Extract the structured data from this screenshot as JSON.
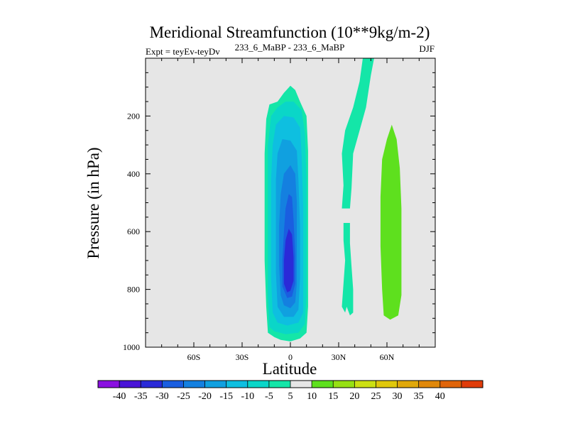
{
  "chart_data": {
    "type": "heatmap",
    "title": "Meridional Streamfunction (10**9kg/m-2)",
    "subtitle_left": "Expt = teyEv-teyDv",
    "subtitle_center": "233_6_MaBP - 233_6_MaBP",
    "subtitle_right": "DJF",
    "xlabel": "Latitude",
    "ylabel": "Pressure (in hPa)",
    "xlim": [
      -90,
      90
    ],
    "ylim": [
      0,
      1000
    ],
    "y_reversed": true,
    "x_ticks": [
      {
        "value": -60,
        "label": "60S"
      },
      {
        "value": -30,
        "label": "30S"
      },
      {
        "value": 0,
        "label": "0"
      },
      {
        "value": 30,
        "label": "30N"
      },
      {
        "value": 60,
        "label": "60N"
      }
    ],
    "y_ticks": [
      {
        "value": 200,
        "label": "200"
      },
      {
        "value": 400,
        "label": "400"
      },
      {
        "value": 600,
        "label": "600"
      },
      {
        "value": 800,
        "label": "800"
      },
      {
        "value": 1000,
        "label": "1000"
      }
    ],
    "background_color": "#e6e6e6",
    "colorbar": {
      "labels": [
        "-40",
        "-35",
        "-30",
        "-25",
        "-20",
        "-15",
        "-10",
        "-5",
        "5",
        "10",
        "15",
        "20",
        "25",
        "30",
        "35",
        "40"
      ],
      "colors": [
        "#8a10e0",
        "#4a14d8",
        "#2a2ad8",
        "#1a5ee0",
        "#1480e0",
        "#10a0e0",
        "#0ebfe0",
        "#0ad6c8",
        "#14e6a8",
        "#e6e6e6",
        "#5ee01e",
        "#96e014",
        "#cce014",
        "#e0c80c",
        "#e0a80a",
        "#e0880a",
        "#e0640a",
        "#e03c0a"
      ]
    },
    "regions": [
      {
        "name": "sh-cell-level-minus5",
        "color": "#14e6a8",
        "points": [
          [
            -14,
            950
          ],
          [
            -15,
            860
          ],
          [
            -16,
            700
          ],
          [
            -16,
            500
          ],
          [
            -16,
            330
          ],
          [
            -15,
            210
          ],
          [
            -13,
            160
          ],
          [
            -8,
            150
          ],
          [
            -4,
            120
          ],
          [
            0,
            95
          ],
          [
            3,
            110
          ],
          [
            6,
            150
          ],
          [
            10,
            200
          ],
          [
            11,
            320
          ],
          [
            11,
            500
          ],
          [
            11,
            700
          ],
          [
            11,
            860
          ],
          [
            10,
            950
          ],
          [
            6,
            970
          ],
          [
            0,
            980
          ],
          [
            -6,
            975
          ],
          [
            -10,
            965
          ]
        ]
      },
      {
        "name": "sh-cell-level-minus10",
        "color": "#0ad6c8",
        "points": [
          [
            -13,
            930
          ],
          [
            -14,
            820
          ],
          [
            -14,
            650
          ],
          [
            -14,
            450
          ],
          [
            -14,
            300
          ],
          [
            -12,
            200
          ],
          [
            -8,
            170
          ],
          [
            -3,
            150
          ],
          [
            2,
            150
          ],
          [
            7,
            180
          ],
          [
            9,
            260
          ],
          [
            10,
            420
          ],
          [
            10,
            620
          ],
          [
            10,
            820
          ],
          [
            9,
            920
          ],
          [
            5,
            950
          ],
          [
            -3,
            955
          ],
          [
            -10,
            945
          ]
        ]
      },
      {
        "name": "sh-cell-level-minus15",
        "color": "#0ebfe0",
        "points": [
          [
            -11,
            880
          ],
          [
            -12,
            760
          ],
          [
            -12,
            580
          ],
          [
            -12,
            420
          ],
          [
            -11,
            300
          ],
          [
            -9,
            230
          ],
          [
            -4,
            200
          ],
          [
            2,
            205
          ],
          [
            6,
            240
          ],
          [
            7,
            340
          ],
          [
            8,
            520
          ],
          [
            8,
            720
          ],
          [
            8,
            880
          ],
          [
            5,
            915
          ],
          [
            -2,
            925
          ],
          [
            -8,
            915
          ]
        ]
      },
      {
        "name": "sh-cell-level-minus20",
        "color": "#10a0e0",
        "points": [
          [
            -8,
            860
          ],
          [
            -9,
            740
          ],
          [
            -9,
            580
          ],
          [
            -9,
            420
          ],
          [
            -8,
            330
          ],
          [
            -5,
            280
          ],
          [
            0,
            285
          ],
          [
            4,
            320
          ],
          [
            5,
            420
          ],
          [
            6,
            580
          ],
          [
            6,
            760
          ],
          [
            5,
            870
          ],
          [
            2,
            895
          ],
          [
            -4,
            895
          ]
        ]
      },
      {
        "name": "sh-cell-level-minus25",
        "color": "#1480e0",
        "points": [
          [
            -6,
            820
          ],
          [
            -7,
            720
          ],
          [
            -7,
            580
          ],
          [
            -6,
            470
          ],
          [
            -4,
            400
          ],
          [
            0,
            370
          ],
          [
            3,
            400
          ],
          [
            4,
            500
          ],
          [
            4,
            640
          ],
          [
            4,
            780
          ],
          [
            3,
            845
          ],
          [
            0,
            865
          ],
          [
            -4,
            855
          ]
        ]
      },
      {
        "name": "sh-cell-level-minus30",
        "color": "#1a5ee0",
        "points": [
          [
            -5,
            790
          ],
          [
            -5,
            700
          ],
          [
            -4,
            600
          ],
          [
            -3,
            520
          ],
          [
            -1,
            470
          ],
          [
            1,
            480
          ],
          [
            2,
            560
          ],
          [
            3,
            680
          ],
          [
            3,
            780
          ],
          [
            1,
            825
          ],
          [
            -2,
            830
          ]
        ]
      },
      {
        "name": "sh-cell-level-minus35",
        "color": "#2a2ad8",
        "points": [
          [
            -4,
            780
          ],
          [
            -4,
            700
          ],
          [
            -3,
            630
          ],
          [
            -1,
            590
          ],
          [
            1,
            610
          ],
          [
            2,
            690
          ],
          [
            2,
            770
          ],
          [
            0,
            805
          ],
          [
            -2,
            810
          ]
        ]
      },
      {
        "name": "nh-upper-band-minus5",
        "color": "#14e6a8",
        "points": [
          [
            45,
            0
          ],
          [
            52,
            0
          ],
          [
            50,
            60
          ],
          [
            47,
            170
          ],
          [
            43,
            250
          ],
          [
            39,
            330
          ],
          [
            38,
            450
          ],
          [
            37,
            520
          ],
          [
            32,
            520
          ],
          [
            33,
            440
          ],
          [
            32,
            330
          ],
          [
            34,
            250
          ],
          [
            39,
            170
          ],
          [
            43,
            80
          ]
        ]
      },
      {
        "name": "nh-lower-band-minus5",
        "color": "#14e6a8",
        "points": [
          [
            33,
            570
          ],
          [
            37,
            570
          ],
          [
            37,
            640
          ],
          [
            38,
            720
          ],
          [
            39,
            800
          ],
          [
            39,
            880
          ],
          [
            37,
            890
          ],
          [
            35,
            860
          ],
          [
            34,
            880
          ],
          [
            32,
            860
          ],
          [
            33,
            780
          ],
          [
            34,
            700
          ],
          [
            33,
            630
          ]
        ]
      },
      {
        "name": "nh-positive-cell-5",
        "color": "#5ee01e",
        "points": [
          [
            63,
            230
          ],
          [
            66,
            280
          ],
          [
            68,
            380
          ],
          [
            69,
            520
          ],
          [
            69,
            680
          ],
          [
            69,
            820
          ],
          [
            67,
            890
          ],
          [
            62,
            905
          ],
          [
            58,
            890
          ],
          [
            57,
            800
          ],
          [
            56,
            650
          ],
          [
            56,
            480
          ],
          [
            57,
            350
          ],
          [
            60,
            280
          ]
        ]
      }
    ]
  }
}
